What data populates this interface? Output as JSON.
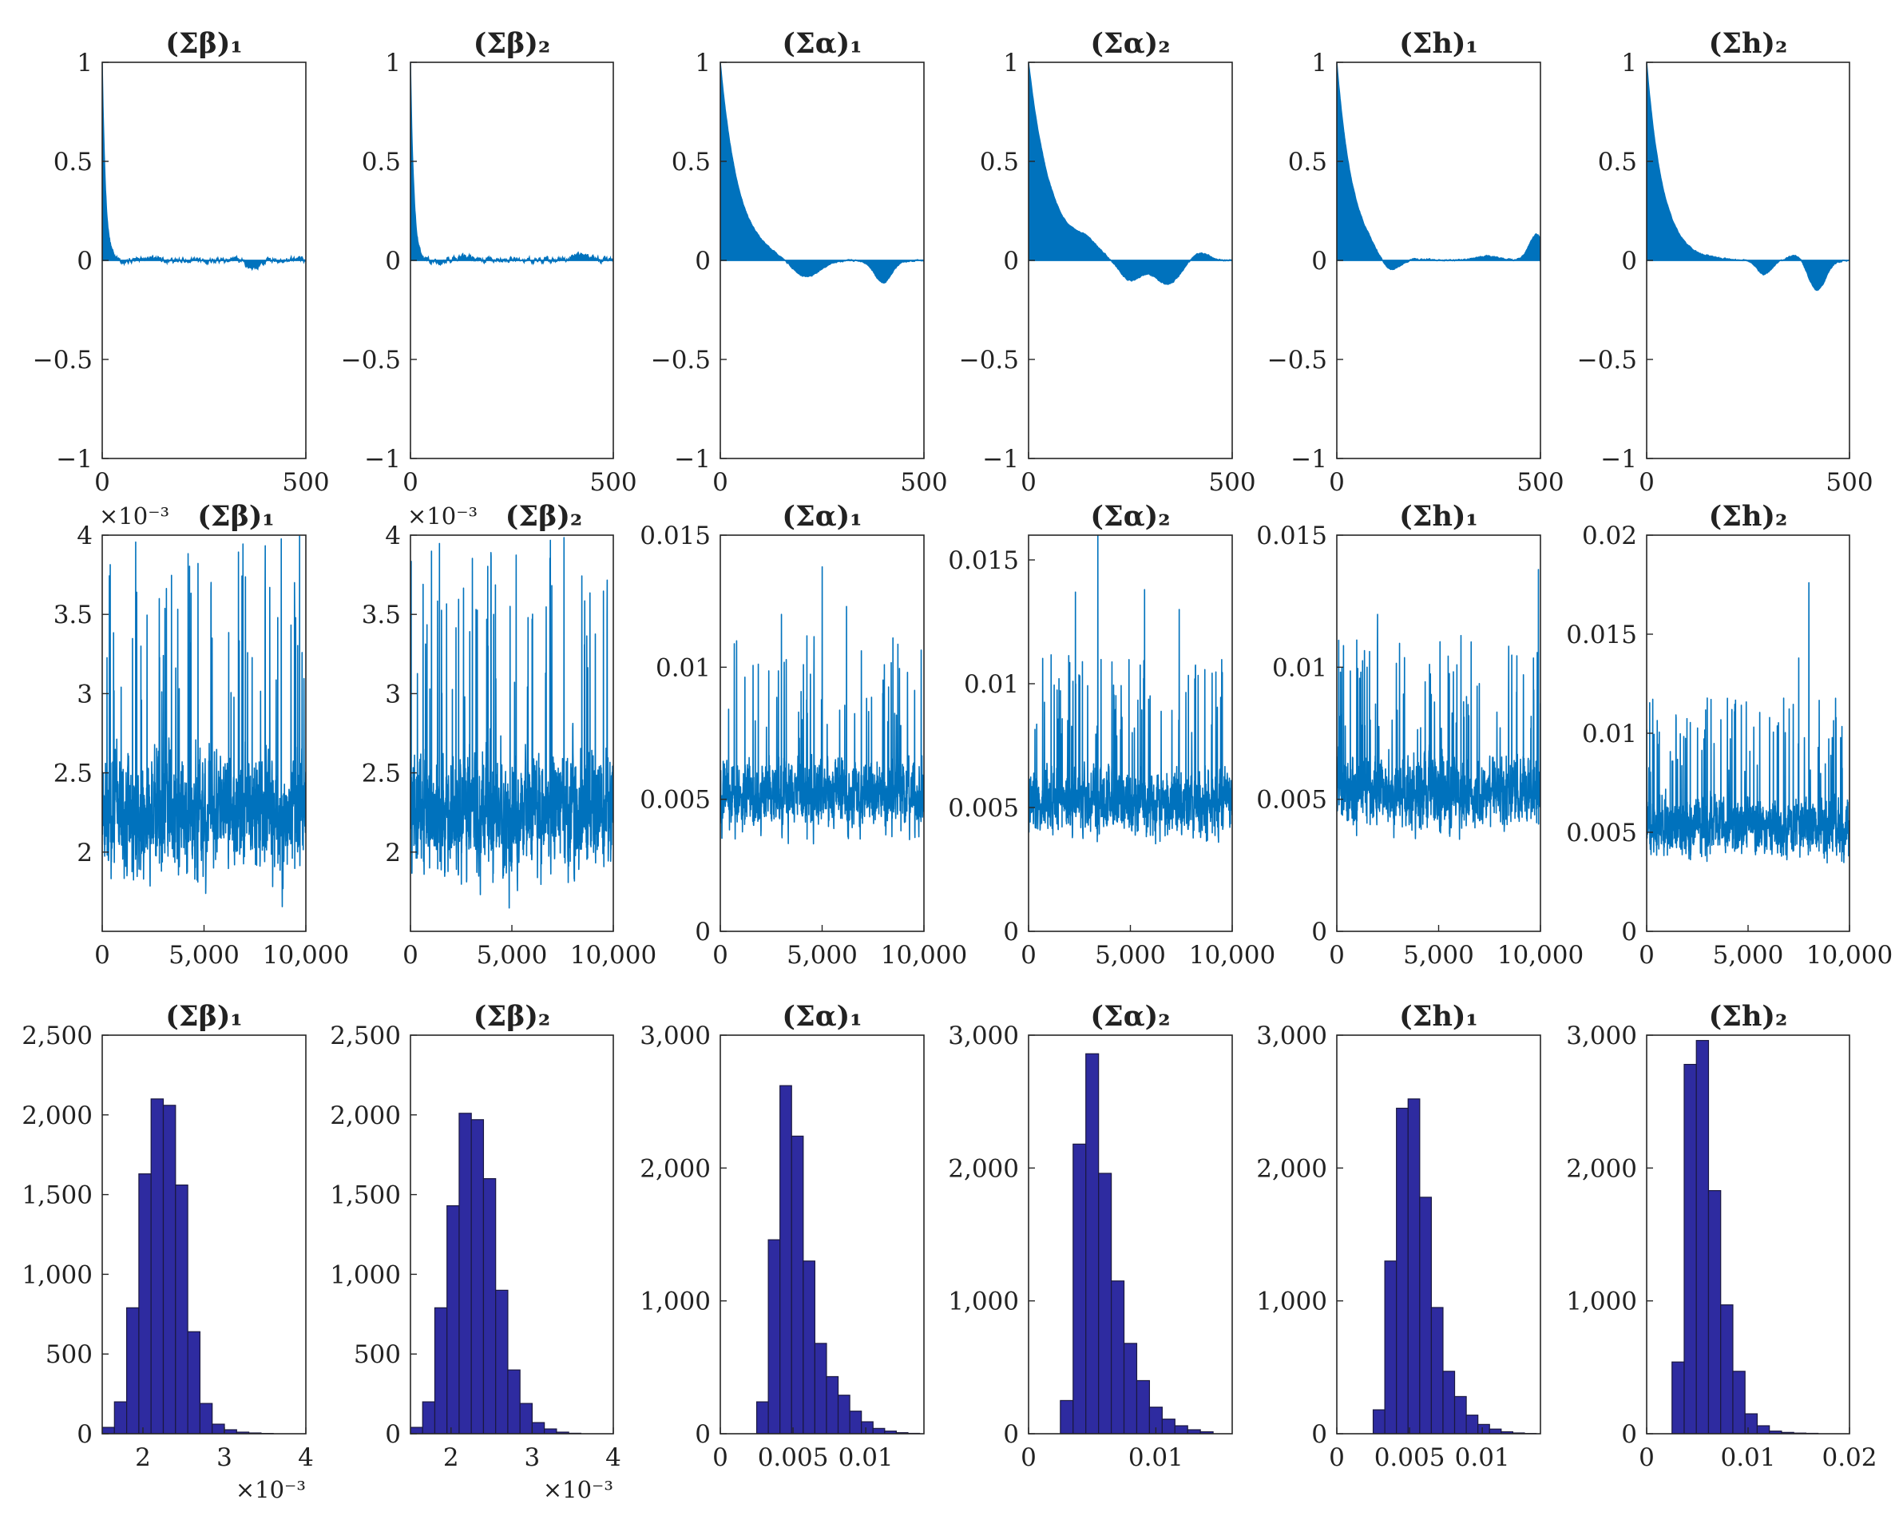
{
  "figure": {
    "rows": [
      {
        "row": "autocorrelation",
        "type": "area"
      },
      {
        "row": "trace",
        "type": "line"
      },
      {
        "row": "histogram",
        "type": "bar"
      }
    ]
  },
  "chart_data": [
    {
      "id": "acf-beta1",
      "type": "area",
      "title": "(Σβ)₁",
      "xlim": [
        0,
        500
      ],
      "ylim": [
        -1,
        1
      ],
      "xticks": [
        0,
        500
      ],
      "yticks": [
        -1,
        -0.5,
        0,
        0.5,
        1
      ],
      "ytick_labels": [
        "−1",
        "−0.5",
        "0",
        "0.5",
        "1"
      ],
      "xtick_labels": [
        "0",
        "500"
      ],
      "decay": 8,
      "noise": 0.02,
      "bumps": [
        [
          120,
          25,
          0.02
        ],
        [
          370,
          20,
          -0.04
        ]
      ],
      "color": "#0072BD"
    },
    {
      "id": "acf-beta2",
      "type": "area",
      "title": "(Σβ)₂",
      "xlim": [
        0,
        500
      ],
      "ylim": [
        -1,
        1
      ],
      "xticks": [
        0,
        500
      ],
      "yticks": [
        -1,
        -0.5,
        0,
        0.5,
        1
      ],
      "ytick_labels": [
        "−1",
        "−0.5",
        "0",
        "0.5",
        "1"
      ],
      "xtick_labels": [
        "0",
        "500"
      ],
      "decay": 8,
      "noise": 0.02,
      "bumps": [
        [
          130,
          30,
          0.02
        ],
        [
          420,
          30,
          0.03
        ]
      ],
      "color": "#0072BD"
    },
    {
      "id": "acf-alpha1",
      "type": "area",
      "title": "(Σα)₁",
      "xlim": [
        0,
        500
      ],
      "ylim": [
        -1,
        1
      ],
      "xticks": [
        0,
        500
      ],
      "yticks": [
        -1,
        -0.5,
        0,
        0.5,
        1
      ],
      "ytick_labels": [
        "−1",
        "−0.5",
        "0",
        "0.5",
        "1"
      ],
      "xtick_labels": [
        "0",
        "500"
      ],
      "decay": 45,
      "noise": 0.005,
      "bumps": [
        [
          210,
          50,
          -0.09
        ],
        [
          400,
          30,
          -0.11
        ]
      ],
      "color": "#0072BD"
    },
    {
      "id": "acf-alpha2",
      "type": "area",
      "title": "(Σα)₂",
      "xlim": [
        0,
        500
      ],
      "ylim": [
        -1,
        1
      ],
      "xticks": [
        0,
        500
      ],
      "yticks": [
        -1,
        -0.5,
        0,
        0.5,
        1
      ],
      "ytick_labels": [
        "−1",
        "−0.5",
        "0",
        "0.5",
        "1"
      ],
      "xtick_labels": [
        "0",
        "500"
      ],
      "decay": 55,
      "noise": 0.005,
      "bumps": [
        [
          140,
          35,
          0.05
        ],
        [
          250,
          40,
          -0.11
        ],
        [
          340,
          45,
          -0.12
        ],
        [
          420,
          30,
          0.04
        ]
      ],
      "color": "#0072BD"
    },
    {
      "id": "acf-h1",
      "type": "area",
      "title": "(Σh)₁",
      "xlim": [
        0,
        500
      ],
      "ylim": [
        -1,
        1
      ],
      "xticks": [
        0,
        500
      ],
      "yticks": [
        -1,
        -0.5,
        0,
        0.5,
        1
      ],
      "ytick_labels": [
        "−1",
        "−0.5",
        "0",
        "0.5",
        "1"
      ],
      "xtick_labels": [
        "0",
        "500"
      ],
      "decay": 40,
      "noise": 0.005,
      "bumps": [
        [
          130,
          35,
          -0.08
        ],
        [
          370,
          40,
          0.02
        ],
        [
          490,
          25,
          0.13
        ]
      ],
      "color": "#0072BD"
    },
    {
      "id": "acf-h2",
      "type": "area",
      "title": "(Σh)₂",
      "xlim": [
        0,
        500
      ],
      "ylim": [
        -1,
        1
      ],
      "xticks": [
        0,
        500
      ],
      "yticks": [
        -1,
        -0.5,
        0,
        0.5,
        1
      ],
      "ytick_labels": [
        "−1",
        "−0.5",
        "0",
        "0.5",
        "1"
      ],
      "xtick_labels": [
        "0",
        "500"
      ],
      "decay": 40,
      "noise": 0.005,
      "bumps": [
        [
          290,
          25,
          -0.07
        ],
        [
          370,
          25,
          0.03
        ],
        [
          420,
          30,
          -0.15
        ]
      ],
      "color": "#0072BD"
    },
    {
      "id": "trace-beta1",
      "type": "line",
      "title": "(Σβ)₁",
      "multiplier": "×10⁻³",
      "xlim": [
        0,
        10000
      ],
      "ylim": [
        1.5,
        4
      ],
      "xticks": [
        0,
        5000,
        10000
      ],
      "xtick_labels": [
        "0",
        "5,000",
        "10,000"
      ],
      "yticks": [
        2,
        2.5,
        3,
        3.5,
        4
      ],
      "ytick_labels": [
        "2",
        "2.5",
        "3",
        "3.5",
        "4"
      ],
      "mean": 2.25,
      "spread": 0.35,
      "spikes": [
        [
          8000,
          3.62
        ],
        [
          5400,
          3.35
        ],
        [
          1900,
          3.3
        ]
      ],
      "seed": 3,
      "color": "#0072BD"
    },
    {
      "id": "trace-beta2",
      "type": "line",
      "title": "(Σβ)₂",
      "multiplier": "×10⁻³",
      "xlim": [
        0,
        10000
      ],
      "ylim": [
        1.5,
        4
      ],
      "xticks": [
        0,
        5000,
        10000
      ],
      "xtick_labels": [
        "0",
        "5,000",
        "10,000"
      ],
      "yticks": [
        2,
        2.5,
        3,
        3.5,
        4
      ],
      "ytick_labels": [
        "2",
        "2.5",
        "3",
        "3.5",
        "4"
      ],
      "mean": 2.25,
      "spread": 0.35,
      "spikes": [
        [
          4100,
          3.5
        ],
        [
          5800,
          3.48
        ],
        [
          6000,
          3.47
        ]
      ],
      "seed": 7,
      "color": "#0072BD"
    },
    {
      "id": "trace-alpha1",
      "type": "line",
      "title": "(Σα)₁",
      "xlim": [
        0,
        10000
      ],
      "ylim": [
        0,
        0.015
      ],
      "xticks": [
        0,
        5000,
        10000
      ],
      "xtick_labels": [
        "0",
        "5,000",
        "10,000"
      ],
      "yticks": [
        0,
        0.005,
        0.01,
        0.015
      ],
      "ytick_labels": [
        "0",
        "0.005",
        "0.01",
        "0.015"
      ],
      "mean": 0.0052,
      "spread": 0.0012,
      "spikes": [
        [
          5000,
          0.0138
        ],
        [
          3000,
          0.012
        ],
        [
          6200,
          0.0123
        ],
        [
          800,
          0.011
        ]
      ],
      "seed": 11,
      "color": "#0072BD"
    },
    {
      "id": "trace-alpha2",
      "type": "line",
      "title": "(Σα)₂",
      "xlim": [
        0,
        10000
      ],
      "ylim": [
        0,
        0.016
      ],
      "xticks": [
        0,
        5000,
        10000
      ],
      "xtick_labels": [
        "0",
        "5,000",
        "10,000"
      ],
      "yticks": [
        0,
        0.005,
        0.01,
        0.015
      ],
      "ytick_labels": [
        "0",
        "0.005",
        "0.01",
        "0.015"
      ],
      "mean": 0.0052,
      "spread": 0.0012,
      "spikes": [
        [
          3400,
          0.016
        ],
        [
          5700,
          0.0138
        ],
        [
          2300,
          0.0137
        ],
        [
          7400,
          0.013
        ]
      ],
      "seed": 13,
      "color": "#0072BD"
    },
    {
      "id": "trace-h1",
      "type": "line",
      "title": "(Σh)₁",
      "xlim": [
        0,
        10000
      ],
      "ylim": [
        0,
        0.015
      ],
      "xticks": [
        0,
        5000,
        10000
      ],
      "xtick_labels": [
        "0",
        "5,000",
        "10,000"
      ],
      "yticks": [
        0,
        0.005,
        0.01,
        0.015
      ],
      "ytick_labels": [
        "0",
        "0.005",
        "0.01",
        "0.015"
      ],
      "mean": 0.0052,
      "spread": 0.0012,
      "spikes": [
        [
          9900,
          0.0137
        ],
        [
          2000,
          0.012
        ],
        [
          6100,
          0.0112
        ]
      ],
      "seed": 17,
      "color": "#0072BD"
    },
    {
      "id": "trace-h2",
      "type": "line",
      "title": "(Σh)₂",
      "xlim": [
        0,
        10000
      ],
      "ylim": [
        0,
        0.02
      ],
      "xticks": [
        0,
        5000,
        10000
      ],
      "xtick_labels": [
        "0",
        "5,000",
        "10,000"
      ],
      "yticks": [
        0,
        0.005,
        0.01,
        0.015,
        0.02
      ],
      "ytick_labels": [
        "0",
        "0.005",
        "0.01",
        "0.015",
        "0.02"
      ],
      "mean": 0.0053,
      "spread": 0.0013,
      "spikes": [
        [
          8000,
          0.0176
        ],
        [
          7500,
          0.0138
        ],
        [
          4200,
          0.0112
        ]
      ],
      "seed": 19,
      "color": "#0072BD"
    },
    {
      "id": "hist-beta1",
      "type": "bar",
      "title": "(Σβ)₁",
      "multiplier": "×10⁻³",
      "xlim": [
        1.5,
        4
      ],
      "ylim": [
        0,
        2500
      ],
      "xticks": [
        2,
        3,
        4
      ],
      "xtick_labels": [
        "2",
        "3",
        "4"
      ],
      "yticks": [
        0,
        500,
        1000,
        1500,
        2000,
        2500
      ],
      "ytick_labels": [
        "0",
        "500",
        "1,000",
        "1,500",
        "2,000",
        "2,500"
      ],
      "bin_start": 1.5,
      "bin_width": 0.15,
      "counts": [
        40,
        200,
        790,
        1630,
        2100,
        2060,
        1560,
        640,
        190,
        60,
        25,
        10,
        5,
        2
      ],
      "color": "#2E2BA0"
    },
    {
      "id": "hist-beta2",
      "type": "bar",
      "title": "(Σβ)₂",
      "multiplier": "×10⁻³",
      "xlim": [
        1.5,
        4
      ],
      "ylim": [
        0,
        2500
      ],
      "xticks": [
        2,
        3,
        4
      ],
      "xtick_labels": [
        "2",
        "3",
        "4"
      ],
      "yticks": [
        0,
        500,
        1000,
        1500,
        2000,
        2500
      ],
      "ytick_labels": [
        "0",
        "500",
        "1,000",
        "1,500",
        "2,000",
        "2,500"
      ],
      "bin_start": 1.5,
      "bin_width": 0.15,
      "counts": [
        40,
        200,
        790,
        1430,
        2010,
        1970,
        1600,
        900,
        400,
        190,
        70,
        30,
        10,
        3
      ],
      "color": "#2E2BA0"
    },
    {
      "id": "hist-alpha1",
      "type": "bar",
      "title": "(Σα)₁",
      "xlim": [
        0,
        0.014
      ],
      "ylim": [
        0,
        3000
      ],
      "xticks": [
        0,
        0.005,
        0.01
      ],
      "xtick_labels": [
        "0",
        "0.005",
        "0.01"
      ],
      "yticks": [
        0,
        1000,
        2000,
        3000
      ],
      "ytick_labels": [
        "0",
        "1,000",
        "2,000",
        "3,000"
      ],
      "bin_start": 0.0025,
      "bin_width": 0.0008,
      "counts": [
        240,
        1460,
        2620,
        2240,
        1300,
        680,
        430,
        290,
        170,
        90,
        40,
        20,
        8,
        3
      ],
      "color": "#2E2BA0"
    },
    {
      "id": "hist-alpha2",
      "type": "bar",
      "title": "(Σα)₂",
      "xlim": [
        0,
        0.016
      ],
      "ylim": [
        0,
        3000
      ],
      "xticks": [
        0,
        0.01
      ],
      "xtick_labels": [
        "0",
        "0.01"
      ],
      "yticks": [
        0,
        1000,
        2000,
        3000
      ],
      "ytick_labels": [
        "0",
        "1,000",
        "2,000",
        "3,000"
      ],
      "bin_start": 0.0025,
      "bin_width": 0.001,
      "counts": [
        250,
        2180,
        2860,
        1960,
        1150,
        680,
        400,
        200,
        110,
        60,
        30,
        15
      ],
      "color": "#2E2BA0"
    },
    {
      "id": "hist-h1",
      "type": "bar",
      "title": "(Σh)₁",
      "xlim": [
        0,
        0.014
      ],
      "ylim": [
        0,
        3000
      ],
      "xticks": [
        0,
        0.005,
        0.01
      ],
      "xtick_labels": [
        "0",
        "0.005",
        "0.01"
      ],
      "yticks": [
        0,
        1000,
        2000,
        3000
      ],
      "ytick_labels": [
        "0",
        "1,000",
        "2,000",
        "3,000"
      ],
      "bin_start": 0.0025,
      "bin_width": 0.0008,
      "counts": [
        180,
        1300,
        2450,
        2520,
        1780,
        950,
        470,
        280,
        140,
        70,
        35,
        15,
        6,
        2
      ],
      "color": "#2E2BA0"
    },
    {
      "id": "hist-h2",
      "type": "bar",
      "title": "(Σh)₂",
      "xlim": [
        0,
        0.02
      ],
      "ylim": [
        0,
        3000
      ],
      "xticks": [
        0,
        0.01,
        0.02
      ],
      "xtick_labels": [
        "0",
        "0.01",
        "0.02"
      ],
      "yticks": [
        0,
        1000,
        2000,
        3000
      ],
      "ytick_labels": [
        "0",
        "1,000",
        "2,000",
        "3,000"
      ],
      "bin_start": 0.0025,
      "bin_width": 0.0012,
      "counts": [
        540,
        2780,
        2960,
        1830,
        970,
        470,
        150,
        60,
        20,
        10,
        5,
        3
      ],
      "color": "#2E2BA0"
    }
  ]
}
